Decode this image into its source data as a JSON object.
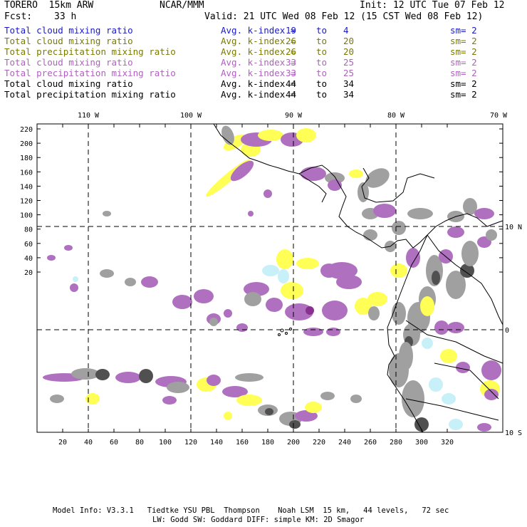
{
  "header": {
    "model": "TORERO  15km ARW",
    "org": "NCAR/MMM",
    "init": "Init: 12 UTC Tue 07 Feb 12",
    "fcst_label": "Fcst:",
    "fcst_value": "33 h",
    "valid": "Valid: 21 UTC Wed 08 Feb 12 (15 CST Wed 08 Feb 12)"
  },
  "legend": [
    {
      "field": "Total cloud mixing ratio",
      "kindex": "Avg. k-index =",
      "k1": "19",
      "to": "to",
      "k2": "4",
      "sm": "sm= 2",
      "color": "#1a1acc"
    },
    {
      "field": "Total cloud mixing ratio",
      "kindex": "Avg. k-index =",
      "k1": "26",
      "to": "to",
      "k2": "20",
      "sm": "sm= 2",
      "color": "#7a7a00"
    },
    {
      "field": "Total precipitation mixing ratio",
      "kindex": "Avg. k-index =",
      "k1": "26",
      "to": "to",
      "k2": "20",
      "sm": "sm= 2",
      "color": "#7a7a00"
    },
    {
      "field": "Total cloud mixing ratio",
      "kindex": "Avg. k-index =",
      "k1": "33",
      "to": "to",
      "k2": "25",
      "sm": "sm= 2",
      "color": "#b060c0"
    },
    {
      "field": "Total precipitation mixing ratio",
      "kindex": "Avg. k-index =",
      "k1": "33",
      "to": "to",
      "k2": "25",
      "sm": "sm= 2",
      "color": "#b060c0"
    },
    {
      "field": "Total cloud mixing ratio",
      "kindex": "Avg. k-index =",
      "k1": "44",
      "to": "to",
      "k2": "34",
      "sm": "sm= 2",
      "color": "#000000"
    },
    {
      "field": "Total precipitation mixing ratio",
      "kindex": "Avg. k-index =",
      "k1": "44",
      "to": "to",
      "k2": "34",
      "sm": "sm= 2",
      "color": "#000000"
    }
  ],
  "map": {
    "lon_labels": [
      "110 W",
      "100 W",
      "90 W",
      "80 W",
      "70 W"
    ],
    "lat_labels": [
      "10 N",
      "0",
      "10 S"
    ],
    "y_ticks": [
      "220",
      "200",
      "180",
      "160",
      "140",
      "120",
      "100",
      "80",
      "60",
      "40",
      "20"
    ],
    "x_ticks": [
      "20",
      "40",
      "60",
      "80",
      "100",
      "120",
      "140",
      "160",
      "180",
      "200",
      "220",
      "240",
      "260",
      "280",
      "300",
      "320"
    ],
    "colors": {
      "yellow": "#ffff55",
      "purple": "#b070c0",
      "gray": "#a0a0a0",
      "darkgray": "#505050",
      "cyan": "#c8f0f8"
    }
  },
  "footer": {
    "line1": "Model Info: V3.3.1   Tiedtke YSU PBL  Thompson    Noah LSM  15 km,   44 levels,   72 sec",
    "line2": "LW: Godd SW: Goddard DIFF: simple KM: 2D Smagor"
  }
}
